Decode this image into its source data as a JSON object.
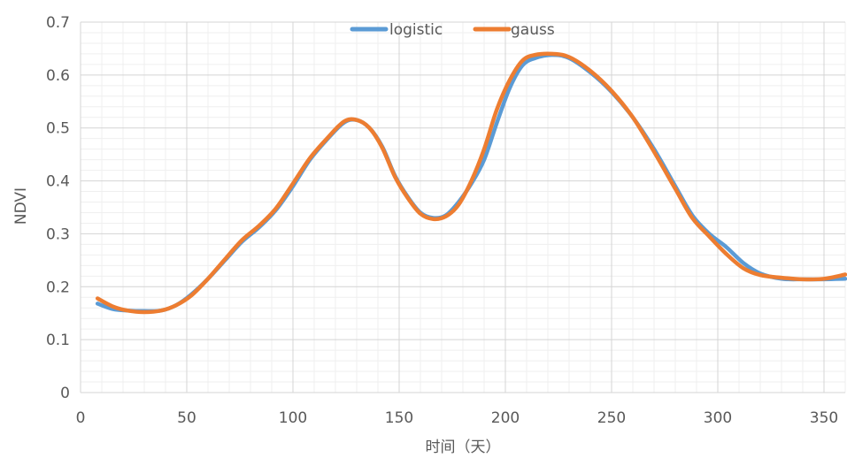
{
  "chart_data": {
    "type": "line",
    "title": "",
    "xlabel": "时间（天）",
    "ylabel": "NDVI",
    "xlim": [
      0,
      360
    ],
    "ylim": [
      0,
      0.7
    ],
    "x_ticks": [
      "0",
      "50",
      "100",
      "150",
      "200",
      "250",
      "300",
      "350"
    ],
    "y_ticks": [
      "0",
      "0.1",
      "0.2",
      "0.3",
      "0.4",
      "0.5",
      "0.6",
      "0.7"
    ],
    "grid": true,
    "minor_grid": true,
    "legend_position": "top-center",
    "series": [
      {
        "name": "logistic",
        "color": "#5B9BD5",
        "points": [
          [
            8,
            0.168
          ],
          [
            15,
            0.158
          ],
          [
            22,
            0.155
          ],
          [
            30,
            0.154
          ],
          [
            38,
            0.155
          ],
          [
            45,
            0.165
          ],
          [
            52,
            0.185
          ],
          [
            60,
            0.215
          ],
          [
            68,
            0.25
          ],
          [
            76,
            0.285
          ],
          [
            84,
            0.312
          ],
          [
            92,
            0.345
          ],
          [
            100,
            0.39
          ],
          [
            108,
            0.44
          ],
          [
            116,
            0.478
          ],
          [
            124,
            0.51
          ],
          [
            130,
            0.515
          ],
          [
            136,
            0.5
          ],
          [
            142,
            0.465
          ],
          [
            148,
            0.41
          ],
          [
            154,
            0.37
          ],
          [
            160,
            0.34
          ],
          [
            166,
            0.33
          ],
          [
            172,
            0.335
          ],
          [
            178,
            0.36
          ],
          [
            184,
            0.395
          ],
          [
            190,
            0.44
          ],
          [
            196,
            0.51
          ],
          [
            202,
            0.575
          ],
          [
            208,
            0.618
          ],
          [
            214,
            0.632
          ],
          [
            222,
            0.638
          ],
          [
            230,
            0.632
          ],
          [
            240,
            0.605
          ],
          [
            250,
            0.568
          ],
          [
            260,
            0.52
          ],
          [
            270,
            0.46
          ],
          [
            280,
            0.39
          ],
          [
            288,
            0.335
          ],
          [
            296,
            0.3
          ],
          [
            304,
            0.275
          ],
          [
            312,
            0.245
          ],
          [
            320,
            0.225
          ],
          [
            330,
            0.215
          ],
          [
            340,
            0.214
          ],
          [
            350,
            0.214
          ],
          [
            360,
            0.215
          ]
        ]
      },
      {
        "name": "gauss",
        "color": "#ED7D31",
        "points": [
          [
            8,
            0.178
          ],
          [
            15,
            0.163
          ],
          [
            22,
            0.155
          ],
          [
            30,
            0.152
          ],
          [
            38,
            0.155
          ],
          [
            45,
            0.165
          ],
          [
            52,
            0.183
          ],
          [
            60,
            0.215
          ],
          [
            68,
            0.252
          ],
          [
            76,
            0.288
          ],
          [
            84,
            0.315
          ],
          [
            92,
            0.348
          ],
          [
            100,
            0.395
          ],
          [
            108,
            0.443
          ],
          [
            116,
            0.48
          ],
          [
            124,
            0.512
          ],
          [
            130,
            0.515
          ],
          [
            136,
            0.5
          ],
          [
            142,
            0.463
          ],
          [
            148,
            0.408
          ],
          [
            154,
            0.368
          ],
          [
            160,
            0.338
          ],
          [
            166,
            0.328
          ],
          [
            172,
            0.333
          ],
          [
            178,
            0.355
          ],
          [
            184,
            0.4
          ],
          [
            190,
            0.46
          ],
          [
            196,
            0.535
          ],
          [
            202,
            0.59
          ],
          [
            208,
            0.627
          ],
          [
            214,
            0.638
          ],
          [
            222,
            0.64
          ],
          [
            230,
            0.634
          ],
          [
            240,
            0.608
          ],
          [
            250,
            0.57
          ],
          [
            260,
            0.52
          ],
          [
            270,
            0.455
          ],
          [
            280,
            0.385
          ],
          [
            288,
            0.33
          ],
          [
            296,
            0.295
          ],
          [
            304,
            0.262
          ],
          [
            312,
            0.235
          ],
          [
            320,
            0.222
          ],
          [
            330,
            0.217
          ],
          [
            340,
            0.214
          ],
          [
            350,
            0.215
          ],
          [
            360,
            0.223
          ]
        ]
      }
    ]
  }
}
